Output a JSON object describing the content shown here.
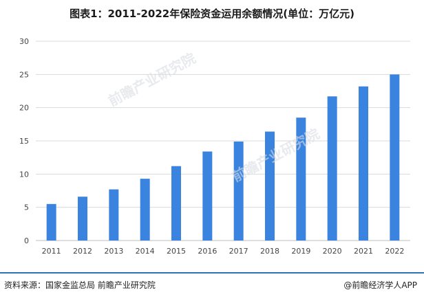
{
  "title": "图表1：2011-2022年保险资金运用余额情况(单位：万亿元)",
  "source": "资料来源：国家金监总局 前瞻产业研究院",
  "credit": "@前瞻经济学人APP",
  "watermark": "前瞻产业研究院",
  "colors": {
    "bar": "#3a83de",
    "grid": "#d9d9d9",
    "axis": "#bfbfbf",
    "tick": "#444444"
  },
  "chart_data": {
    "type": "bar",
    "categories": [
      "2011",
      "2012",
      "2013",
      "2014",
      "2015",
      "2016",
      "2017",
      "2018",
      "2019",
      "2020",
      "2021",
      "2022"
    ],
    "values": [
      5.5,
      6.6,
      7.7,
      9.3,
      11.2,
      13.4,
      14.9,
      16.4,
      18.5,
      21.7,
      23.2,
      25.0
    ],
    "yticks": [
      0,
      5,
      10,
      15,
      20,
      25,
      30
    ],
    "ylim": [
      0,
      30
    ],
    "grid": true
  }
}
